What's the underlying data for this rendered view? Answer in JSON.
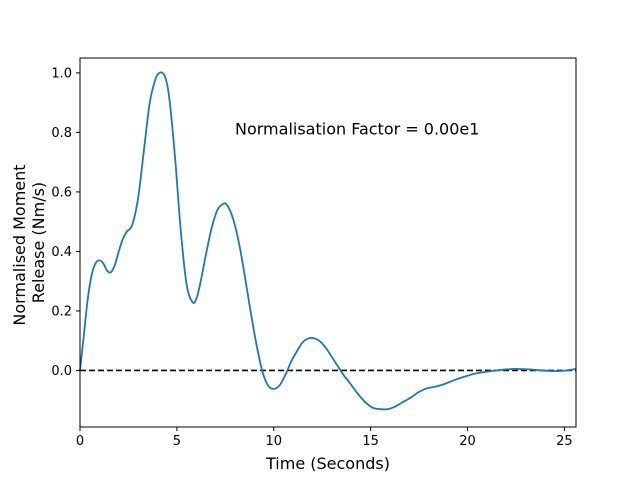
{
  "chart_data": {
    "type": "line",
    "xlabel": "Time (Seconds)",
    "ylabel_lines": [
      "Normalised Moment",
      "Release (Nm/s)"
    ],
    "xlim": [
      0,
      25.6
    ],
    "ylim": [
      -0.19,
      1.05
    ],
    "xticks": [
      0,
      5,
      10,
      15,
      20,
      25
    ],
    "yticks": [
      0.0,
      0.2,
      0.4,
      0.6,
      0.8,
      1.0
    ],
    "ytick_labels": [
      "0.0",
      "0.2",
      "0.4",
      "0.6",
      "0.8",
      "1.0"
    ],
    "grid": false,
    "annotation": {
      "text": "Normalisation Factor = 0.00e1",
      "x": 8.0,
      "y": 0.81
    },
    "reference_line": {
      "y": 0.0,
      "style": "dashed",
      "color": "#000000"
    },
    "series": [
      {
        "color": "#1f77b4",
        "x": [
          0,
          0.2,
          0.4,
          0.6,
          0.8,
          1.0,
          1.2,
          1.4,
          1.6,
          1.8,
          2.0,
          2.2,
          2.4,
          2.7,
          3.0,
          3.3,
          3.6,
          3.9,
          4.1,
          4.25,
          4.4,
          4.6,
          4.9,
          5.2,
          5.5,
          5.8,
          6.0,
          6.2,
          6.5,
          6.8,
          7.1,
          7.4,
          7.6,
          7.9,
          8.2,
          8.5,
          8.8,
          9.1,
          9.4,
          9.7,
          10.0,
          10.3,
          10.6,
          10.9,
          11.2,
          11.5,
          11.8,
          12.1,
          12.4,
          12.7,
          13.0,
          13.3,
          13.6,
          13.9,
          14.3,
          14.7,
          15.1,
          15.5,
          15.9,
          16.3,
          16.7,
          17.1,
          17.5,
          17.9,
          18.3,
          18.7,
          19.1,
          19.5,
          19.9,
          20.3,
          20.7,
          21.1,
          21.5,
          21.9,
          22.3,
          22.7,
          23.1,
          23.5,
          23.9,
          24.3,
          24.7,
          25.1,
          25.6
        ],
        "y": [
          0.0,
          0.12,
          0.24,
          0.32,
          0.36,
          0.37,
          0.36,
          0.335,
          0.33,
          0.355,
          0.4,
          0.44,
          0.465,
          0.49,
          0.58,
          0.74,
          0.9,
          0.98,
          1.0,
          1.0,
          0.985,
          0.92,
          0.72,
          0.47,
          0.29,
          0.23,
          0.24,
          0.29,
          0.39,
          0.48,
          0.54,
          0.56,
          0.555,
          0.51,
          0.43,
          0.32,
          0.2,
          0.09,
          0.0,
          -0.05,
          -0.062,
          -0.05,
          -0.015,
          0.03,
          0.065,
          0.095,
          0.108,
          0.108,
          0.097,
          0.075,
          0.045,
          0.015,
          -0.015,
          -0.04,
          -0.075,
          -0.105,
          -0.125,
          -0.13,
          -0.13,
          -0.12,
          -0.105,
          -0.09,
          -0.072,
          -0.06,
          -0.055,
          -0.048,
          -0.038,
          -0.028,
          -0.02,
          -0.012,
          -0.007,
          -0.003,
          0.0,
          0.003,
          0.005,
          0.005,
          0.004,
          0.002,
          0.0,
          -0.002,
          -0.002,
          0.0,
          0.005
        ]
      }
    ]
  }
}
